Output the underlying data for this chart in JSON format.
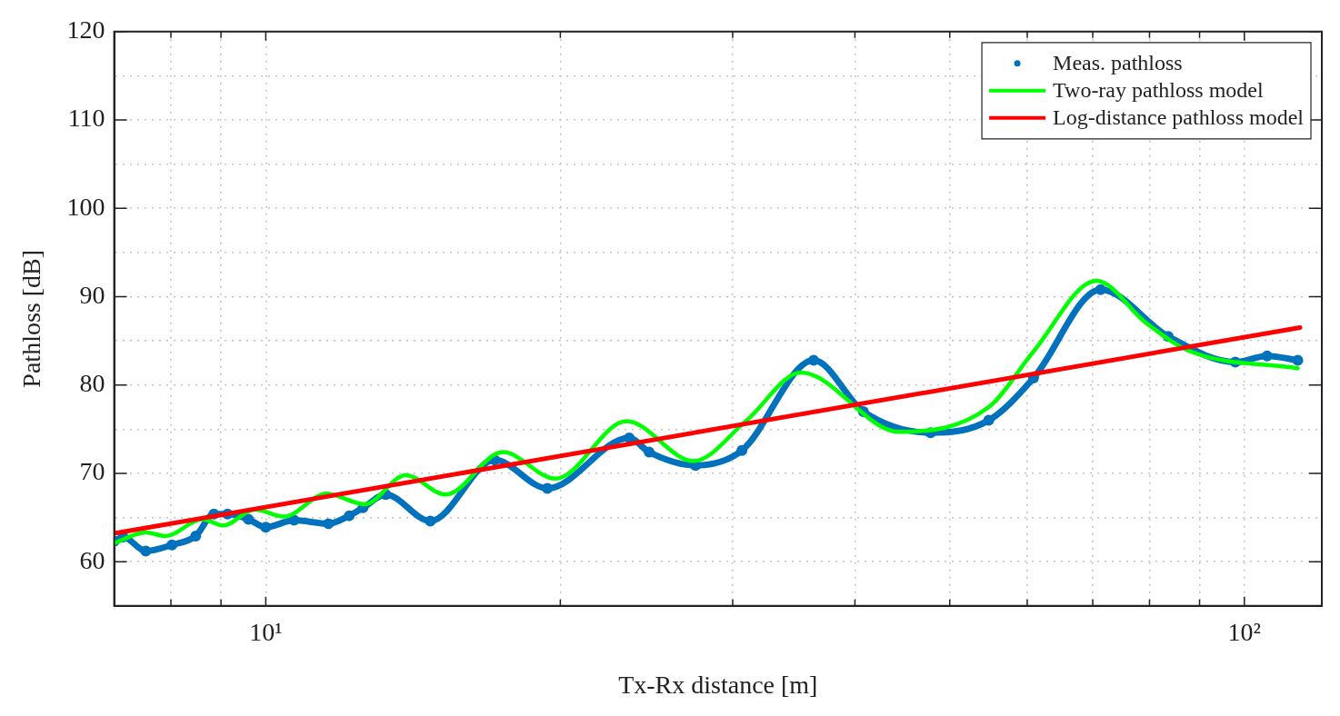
{
  "chart_data": {
    "type": "line",
    "xlabel": "Tx-Rx distance [m]",
    "ylabel": "Pathloss [dB]",
    "log": "x",
    "grid": true,
    "legend": "top right",
    "line_style": "solid",
    "xlim": [
      7,
      120
    ],
    "xticks": [
      {
        "value": 8,
        "label": null
      },
      {
        "value": 9,
        "label": null
      },
      {
        "value": 10,
        "label": "10¹"
      },
      {
        "value": 20,
        "label": null
      },
      {
        "value": 30,
        "label": null
      },
      {
        "value": 40,
        "label": null
      },
      {
        "value": 50,
        "label": null
      },
      {
        "value": 60,
        "label": null
      },
      {
        "value": 70,
        "label": null
      },
      {
        "value": 80,
        "label": null
      },
      {
        "value": 90,
        "label": null
      },
      {
        "value": 100,
        "label": "10²"
      }
    ],
    "ylim": [
      55,
      120
    ],
    "yticks": [
      60,
      {
        "value": 65,
        "label": null
      },
      70,
      {
        "value": 75,
        "label": null
      },
      80,
      {
        "value": 85,
        "label": null
      },
      90,
      {
        "value": 95,
        "label": null
      },
      100,
      {
        "value": 105,
        "label": null
      },
      110,
      {
        "value": 115,
        "label": null
      },
      120
    ],
    "series": [
      {
        "name": "Meas. pathloss",
        "color": "#0072bd",
        "marker": "circle",
        "x": [
          7.0,
          7.15,
          7.54,
          8.02,
          8.48,
          8.85,
          9.14,
          9.6,
          10,
          10.69,
          11.59,
          12.17,
          12.57,
          13.26,
          14.73,
          17.14,
          19.4,
          23.52,
          24.65,
          27.49,
          30.66,
          36.3,
          40.8,
          47.8,
          54.8,
          60.9,
          71.3,
          83.6,
          97.9,
          105.5,
          113.4
        ],
        "values": [
          62.3,
          62.8,
          61.2,
          61.9,
          62.9,
          65.4,
          65.4,
          64.8,
          63.9,
          64.7,
          64.3,
          65.2,
          66.1,
          67.6,
          64.6,
          71.5,
          68.3,
          74.0,
          72.4,
          70.9,
          72.6,
          82.8,
          77.0,
          74.6,
          76.0,
          80.8,
          90.8,
          85.5,
          82.6,
          83.3,
          82.8
        ]
      },
      {
        "name": "Two-ray pathloss model",
        "color": "#00ff00",
        "marker": "none",
        "x": [
          7.0,
          7.54,
          7.9,
          8.61,
          9.05,
          9.75,
          10.43,
          11.54,
          12.62,
          13.9,
          15.27,
          17.47,
          19.78,
          23.37,
          27.37,
          31.0,
          35.23,
          44.4,
          54.8,
          60.9,
          70.6,
          79.4,
          88.1,
          113.4
        ],
        "values": [
          62.1,
          63.3,
          62.9,
          64.8,
          64.1,
          65.9,
          65.1,
          67.7,
          66.5,
          69.8,
          67.6,
          72.4,
          69.4,
          75.9,
          71.4,
          76.0,
          81.4,
          74.7,
          77.5,
          83.8,
          91.8,
          87.0,
          83.8,
          81.9
        ]
      },
      {
        "name": "Log-distance pathloss model",
        "color": "#ff0000",
        "marker": "none",
        "x": [
          7.0,
          114
        ],
        "values": [
          63.2,
          86.5
        ]
      }
    ]
  }
}
